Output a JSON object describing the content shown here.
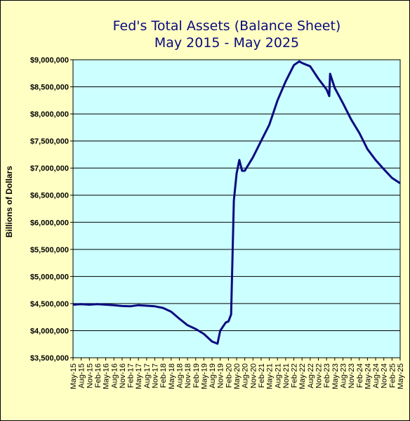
{
  "chart_data": {
    "type": "line",
    "title": "Fed's Total Assets (Balance Sheet)",
    "subtitle": "May 2015 - May 2025",
    "xlabel": "",
    "ylabel": "Billions  of Dollars",
    "ylim": [
      3500000,
      9000000
    ],
    "yticks": [
      3500000,
      4000000,
      4500000,
      5000000,
      5500000,
      6000000,
      6500000,
      7000000,
      7500000,
      8000000,
      8500000,
      9000000
    ],
    "ytick_labels": [
      "$3,500,000",
      "$4,000,000",
      "$4,500,000",
      "$5,000,000",
      "$5,500,000",
      "$6,000,000",
      "$6,500,000",
      "$7,000,000",
      "$7,500,000",
      "$8,000,000",
      "$8,500,000",
      "$9,000,000"
    ],
    "x_range": [
      "May-15",
      "May-25"
    ],
    "xtick_labels": [
      "May-15",
      "Aug-15",
      "Nov-15",
      "Feb-16",
      "May-16",
      "Aug-16",
      "Nov-16",
      "Feb-17",
      "May-17",
      "Aug-17",
      "Nov-17",
      "Feb-18",
      "May-18",
      "Aug-18",
      "Nov-18",
      "Feb-19",
      "May-19",
      "Aug-19",
      "Nov-19",
      "Feb-20",
      "May-20",
      "Aug-20",
      "Nov-20",
      "Feb-21",
      "May-21",
      "Aug-21",
      "Nov-21",
      "Feb-22",
      "May-22",
      "Aug-22",
      "Nov-22",
      "Feb-23",
      "May-23",
      "Aug-23",
      "Nov-23",
      "Feb-24",
      "May-24",
      "Aug-24",
      "Nov-24",
      "Feb-25",
      "May-25"
    ],
    "grid": "horizontal",
    "legend": "none",
    "colors": {
      "plot_bg": "#ccffff",
      "page_bg": "#ffffc4",
      "line": "#0a0a80",
      "title": "#0a0a80"
    },
    "series": [
      {
        "x": [
          "May-15",
          "Aug-15",
          "Nov-15",
          "Feb-16",
          "May-16",
          "Aug-16",
          "Nov-16",
          "Feb-17",
          "May-17",
          "Aug-17",
          "Nov-17",
          "Feb-18",
          "May-18",
          "Aug-18",
          "Nov-18",
          "Feb-19",
          "May-19",
          "Aug-19",
          "Oct-19",
          "Nov-19",
          "Jan-20",
          "Feb-20",
          "Mar-20",
          "Apr-20",
          "May-20",
          "Jun-20",
          "Jul-20",
          "Aug-20",
          "Nov-20",
          "Feb-21",
          "May-21",
          "Aug-21",
          "Nov-21",
          "Feb-22",
          "Apr-22",
          "May-22",
          "Aug-22",
          "Nov-22",
          "Feb-23",
          "Mar-23",
          "Mar-23b",
          "May-23",
          "Aug-23",
          "Nov-23",
          "Feb-24",
          "May-24",
          "Aug-24",
          "Nov-24",
          "Feb-25",
          "May-25"
        ],
        "values": [
          4480000,
          4490000,
          4480000,
          4490000,
          4480000,
          4470000,
          4455000,
          4450000,
          4470000,
          4460000,
          4450000,
          4420000,
          4350000,
          4220000,
          4100000,
          4030000,
          3940000,
          3800000,
          3760000,
          4000000,
          4150000,
          4170000,
          4300000,
          6400000,
          6900000,
          7150000,
          6950000,
          6950000,
          7200000,
          7500000,
          7800000,
          8250000,
          8600000,
          8900000,
          8970000,
          8940000,
          8880000,
          8650000,
          8450000,
          8330000,
          8740000,
          8480000,
          8200000,
          7900000,
          7650000,
          7350000,
          7150000,
          6980000,
          6820000,
          6720000
        ]
      }
    ]
  }
}
